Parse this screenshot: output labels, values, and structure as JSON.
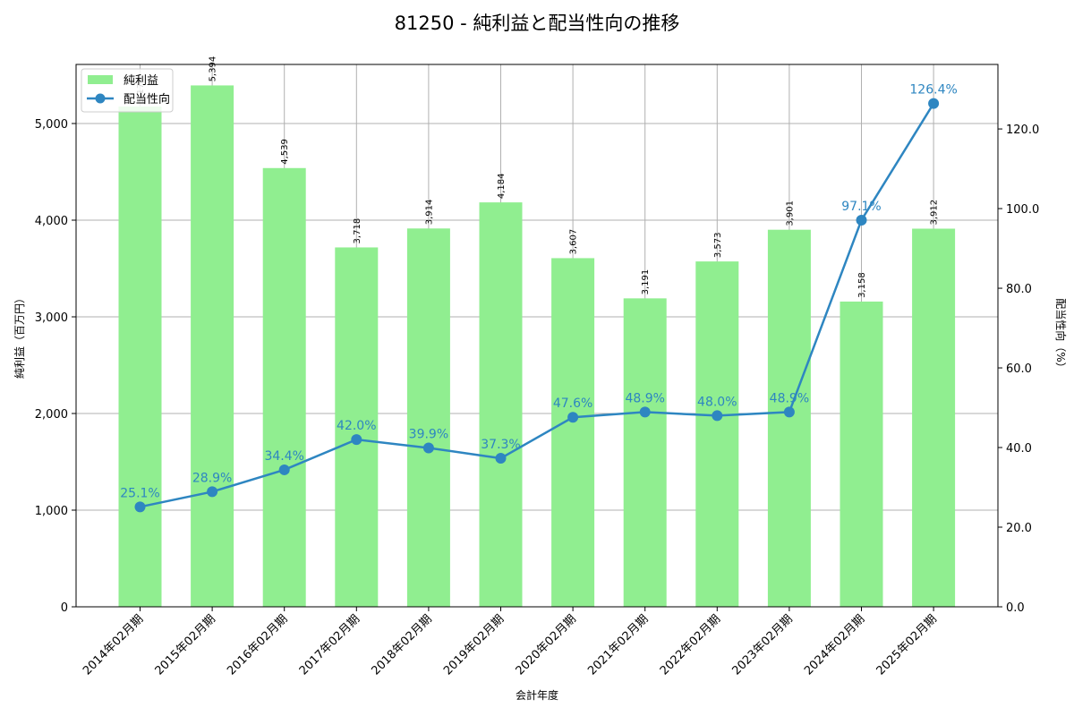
{
  "chart_data": {
    "type": "bar+line",
    "title": "81250 - 純利益と配当性向の推移",
    "xlabel": "会計年度",
    "ylabel_left": "純利益（百万円）",
    "ylabel_right": "配当性向（%）",
    "categories": [
      "2014年02月期",
      "2015年02月期",
      "2016年02月期",
      "2017年02月期",
      "2018年02月期",
      "2019年02月期",
      "2020年02月期",
      "2021年02月期",
      "2022年02月期",
      "2023年02月期",
      "2024年02月期",
      "2025年02月期"
    ],
    "series": [
      {
        "name": "純利益",
        "type": "bar",
        "axis": "left",
        "color": "#90ee90",
        "values": [
          5176,
          5394,
          4539,
          3718,
          3914,
          4184,
          3607,
          3191,
          3573,
          3901,
          3158,
          3912
        ],
        "labels": [
          "5,176",
          "5,394",
          "4,539",
          "3,718",
          "3,914",
          "4,184",
          "3,607",
          "3,191",
          "3,573",
          "3,901",
          "3,158",
          "3,912"
        ]
      },
      {
        "name": "配当性向",
        "type": "line",
        "axis": "right",
        "color": "#2e86c1",
        "values": [
          25.1,
          28.9,
          34.4,
          42.0,
          39.9,
          37.3,
          47.6,
          48.9,
          48.0,
          48.9,
          97.1,
          126.4
        ],
        "labels": [
          "25.1%",
          "28.9%",
          "34.4%",
          "42.0%",
          "39.9%",
          "37.3%",
          "47.6%",
          "48.9%",
          "48.0%",
          "48.9%",
          "97.1%",
          "126.4%"
        ]
      }
    ],
    "ylim_left": [
      0,
      5611
    ],
    "ylim_right": [
      0,
      136.2
    ],
    "yticks_left": [
      0,
      1000,
      2000,
      3000,
      4000,
      5000
    ],
    "yticks_left_labels": [
      "0",
      "1,000",
      "2,000",
      "3,000",
      "4,000",
      "5,000"
    ],
    "yticks_right": [
      0,
      20,
      40,
      60,
      80,
      100,
      120
    ],
    "yticks_right_labels": [
      "0.0",
      "20.0",
      "40.0",
      "60.0",
      "80.0",
      "100.0",
      "120.0"
    ],
    "grid": true,
    "legend_position": "upper left"
  }
}
